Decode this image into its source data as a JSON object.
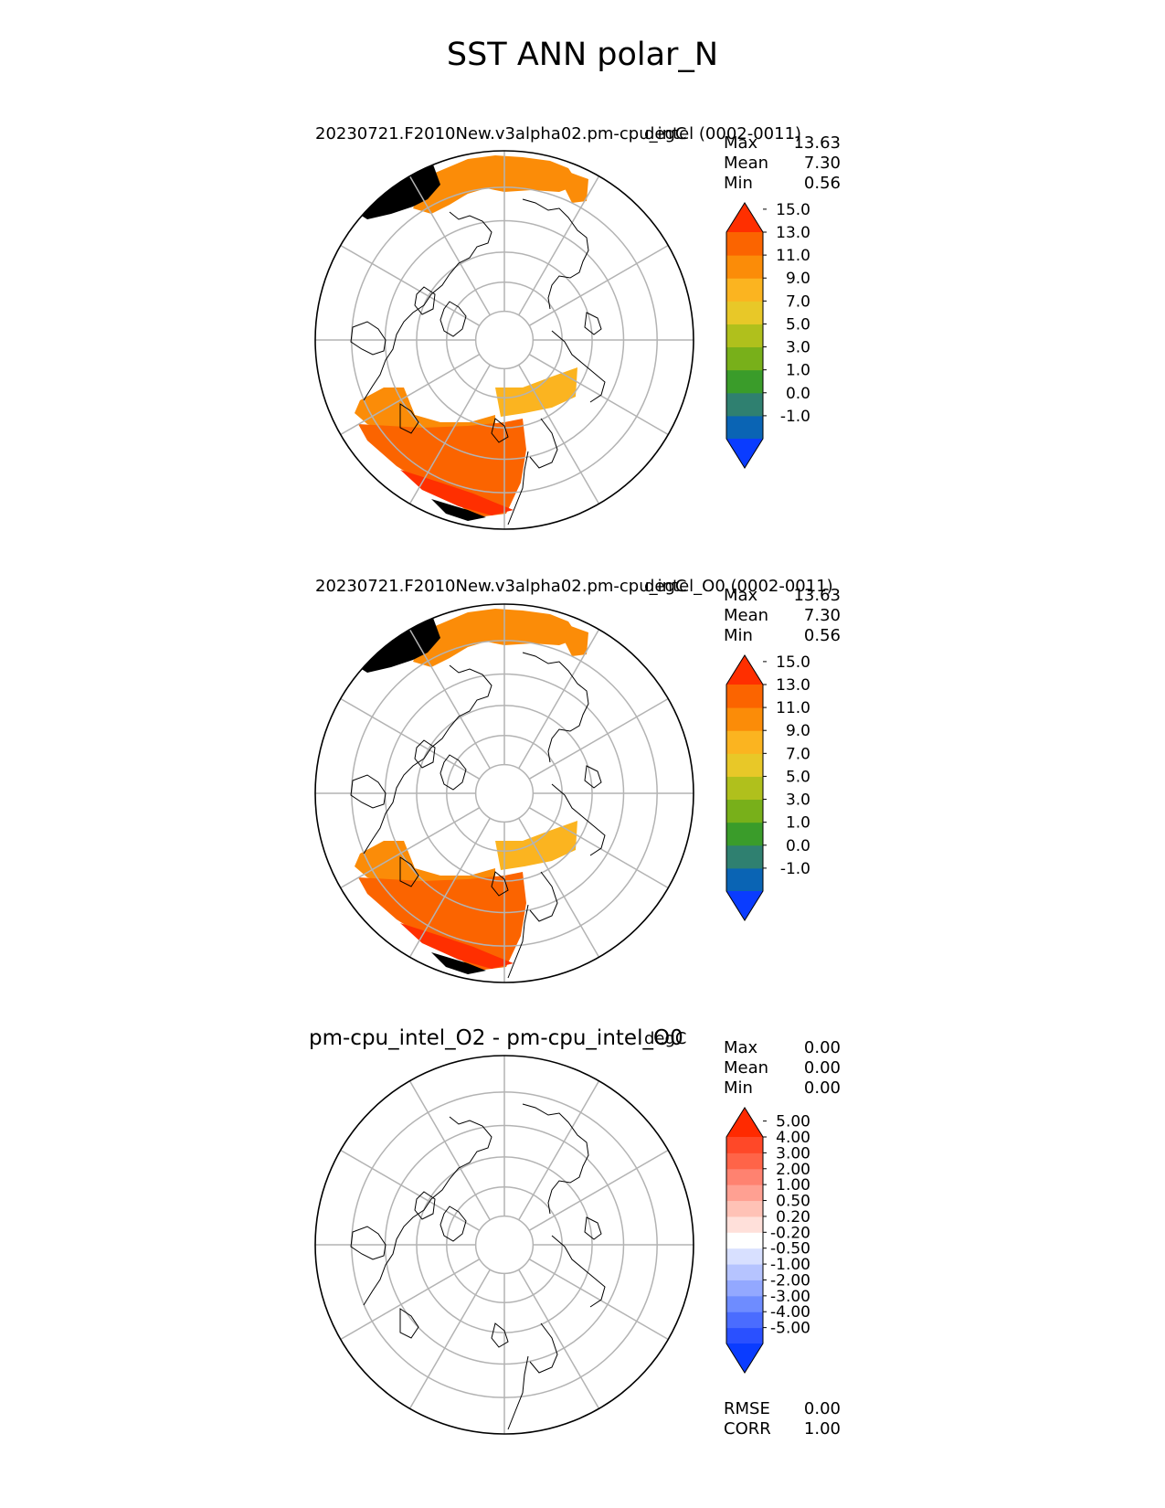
{
  "figure": {
    "title": "SST ANN polar_N",
    "projection": "north-polar-stereographic",
    "graticule": {
      "lat_circles_deg": [
        40,
        50,
        60,
        70,
        80
      ],
      "meridian_step_deg": 30
    },
    "coastline_color": "#000000",
    "graticule_color": "#b3b3b3"
  },
  "panels": [
    {
      "title": "20230721.F2010New.v3alpha02.pm-cpu_intel (0002-0011)",
      "units": "degC",
      "stats": [
        {
          "label": "Max",
          "value": "13.63"
        },
        {
          "label": "Mean",
          "value": "7.30"
        },
        {
          "label": "Min",
          "value": "0.56"
        }
      ],
      "colorbar": {
        "extend": "both",
        "tick_labels": [
          "-1.0",
          "0.0",
          "1.0",
          "3.0",
          "5.0",
          "7.0",
          "9.0",
          "11.0",
          "13.0",
          "15.0"
        ],
        "colors": [
          "#0a3cff",
          "#0a64b4",
          "#2f8070",
          "#3a9c2a",
          "#78b01a",
          "#b0c01c",
          "#e8c828",
          "#fbb420",
          "#fb8c08",
          "#fb6400",
          "#ff2f00"
        ]
      }
    },
    {
      "title": "20230721.F2010New.v3alpha02.pm-cpu_intel_O0 (0002-0011)",
      "units": "degC",
      "stats": [
        {
          "label": "Max",
          "value": "13.63"
        },
        {
          "label": "Mean",
          "value": "7.30"
        },
        {
          "label": "Min",
          "value": "0.56"
        }
      ],
      "colorbar": {
        "extend": "both",
        "tick_labels": [
          "-1.0",
          "0.0",
          "1.0",
          "3.0",
          "5.0",
          "7.0",
          "9.0",
          "11.0",
          "13.0",
          "15.0"
        ],
        "colors": [
          "#0a3cff",
          "#0a64b4",
          "#2f8070",
          "#3a9c2a",
          "#78b01a",
          "#b0c01c",
          "#e8c828",
          "#fbb420",
          "#fb8c08",
          "#fb6400",
          "#ff2f00"
        ]
      }
    },
    {
      "title": "pm-cpu_intel_O2 - pm-cpu_intel_O0",
      "units": "degC",
      "stats": [
        {
          "label": "Max",
          "value": "0.00"
        },
        {
          "label": "Mean",
          "value": "0.00"
        },
        {
          "label": "Min",
          "value": "0.00"
        }
      ],
      "colorbar": {
        "extend": "both",
        "tick_labels": [
          "-5.00",
          "-4.00",
          "-3.00",
          "-2.00",
          "-1.00",
          "-0.50",
          "-0.20",
          "0.20",
          "0.50",
          "1.00",
          "2.00",
          "3.00",
          "4.00",
          "5.00"
        ],
        "colors": [
          "#0a3cff",
          "#2a50ff",
          "#4a6cff",
          "#6e8cff",
          "#93a8ff",
          "#b6c4ff",
          "#d8e0ff",
          "#ffffff",
          "#ffe0da",
          "#ffc2b6",
          "#ffa092",
          "#ff8270",
          "#ff6448",
          "#ff4828",
          "#ff2a00"
        ]
      },
      "metrics": [
        {
          "label": "RMSE",
          "value": "0.00"
        },
        {
          "label": "CORR",
          "value": "1.00"
        }
      ]
    }
  ]
}
